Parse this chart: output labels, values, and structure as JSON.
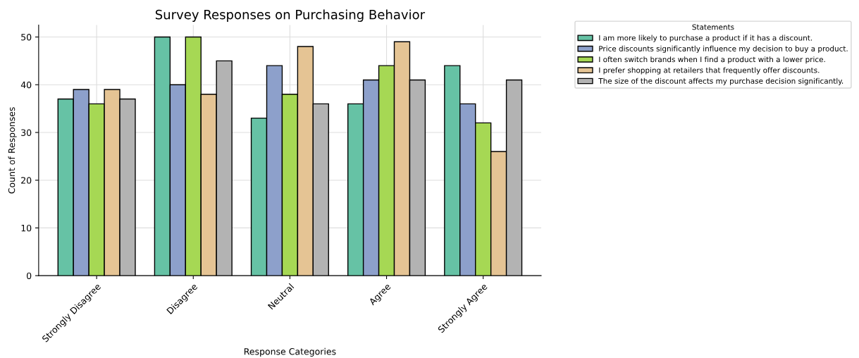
{
  "chart_data": {
    "type": "bar",
    "title": "Survey Responses on Purchasing Behavior",
    "xlabel": "Response Categories",
    "ylabel": "Count of Responses",
    "legend_title": "Statements",
    "categories": [
      "Strongly Disagree",
      "Disagree",
      "Neutral",
      "Agree",
      "Strongly Agree"
    ],
    "series": [
      {
        "name": "I am more likely to purchase a product if it has a discount.",
        "color": "#66c2a5",
        "values": [
          37,
          50,
          33,
          36,
          44
        ]
      },
      {
        "name": "Price discounts significantly influence my decision to buy a product.",
        "color": "#8da0cb",
        "values": [
          39,
          40,
          44,
          41,
          36
        ]
      },
      {
        "name": "I often switch brands when I find a product with a lower price.",
        "color": "#a6d854",
        "values": [
          36,
          50,
          38,
          44,
          32
        ]
      },
      {
        "name": "I prefer shopping at retailers that frequently offer discounts.",
        "color": "#e5c494",
        "values": [
          39,
          38,
          48,
          49,
          26
        ]
      },
      {
        "name": "The size of the discount affects my purchase decision significantly.",
        "color": "#b3b3b3",
        "values": [
          37,
          45,
          36,
          41,
          41
        ]
      }
    ],
    "ylim": [
      0,
      52.5
    ],
    "yticks": [
      0,
      10,
      20,
      30,
      40,
      50
    ],
    "grid": true,
    "legend": "top right"
  }
}
